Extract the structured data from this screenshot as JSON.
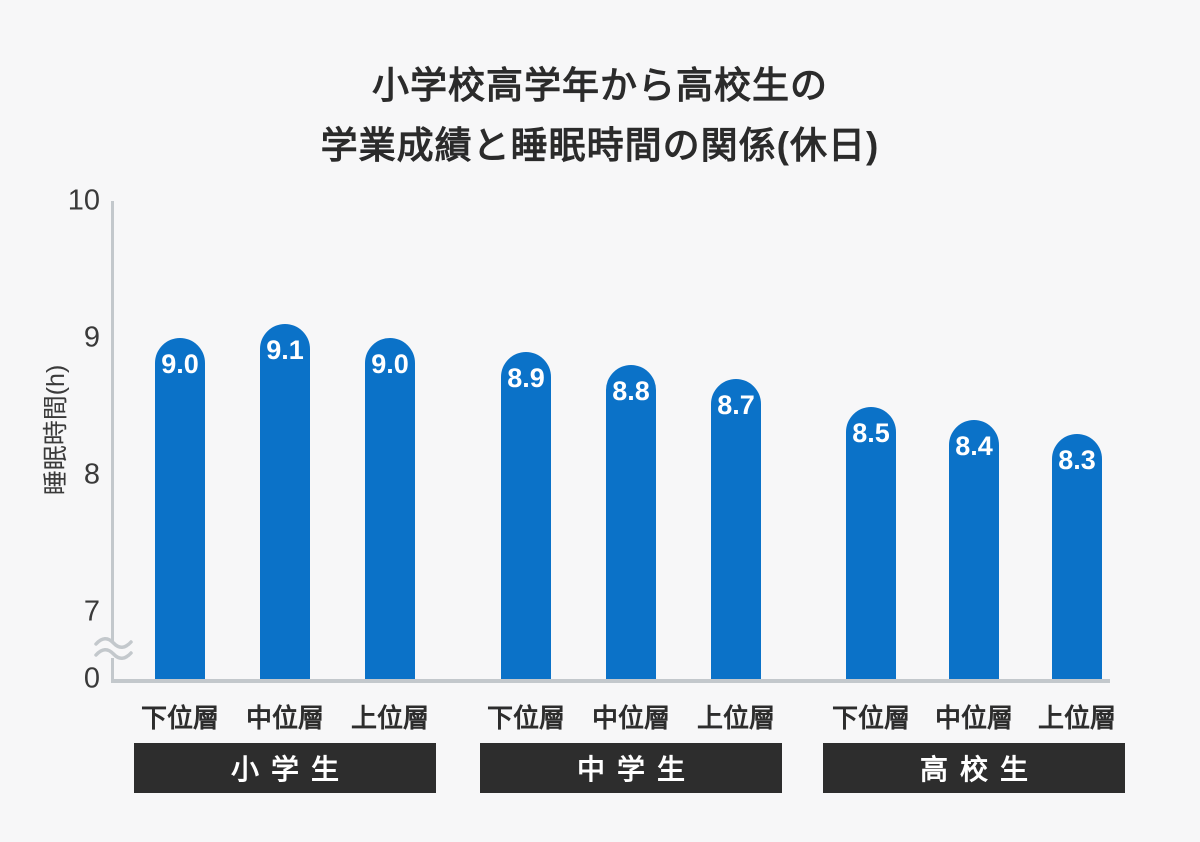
{
  "page": {
    "background_color": "#f7f7f8"
  },
  "chart_data": {
    "type": "bar",
    "title_lines": [
      "小学校高学年から高校生の",
      "学業成績と睡眠時間の関係(休日)"
    ],
    "ylabel": "睡眠時間(h)",
    "yticks": [
      "10",
      "9",
      "8",
      "7",
      "0"
    ],
    "ylim": [
      0,
      10
    ],
    "axis_break": true,
    "grid": false,
    "legend": false,
    "bar_color": "#0b72c8",
    "axis_color": "#c3c8cc",
    "group_label_bg": "#2d2d2d",
    "group_label_color": "#ffffff",
    "groups": [
      {
        "label": "小学生",
        "bars": [
          {
            "category": "下位層",
            "value": 9.0,
            "display": "9.0"
          },
          {
            "category": "中位層",
            "value": 9.1,
            "display": "9.1"
          },
          {
            "category": "上位層",
            "value": 9.0,
            "display": "9.0"
          }
        ]
      },
      {
        "label": "中学生",
        "bars": [
          {
            "category": "下位層",
            "value": 8.9,
            "display": "8.9"
          },
          {
            "category": "中位層",
            "value": 8.8,
            "display": "8.8"
          },
          {
            "category": "上位層",
            "value": 8.7,
            "display": "8.7"
          }
        ]
      },
      {
        "label": "高校生",
        "bars": [
          {
            "category": "下位層",
            "value": 8.5,
            "display": "8.5"
          },
          {
            "category": "中位層",
            "value": 8.4,
            "display": "8.4"
          },
          {
            "category": "上位層",
            "value": 8.3,
            "display": "8.3"
          }
        ]
      }
    ]
  }
}
